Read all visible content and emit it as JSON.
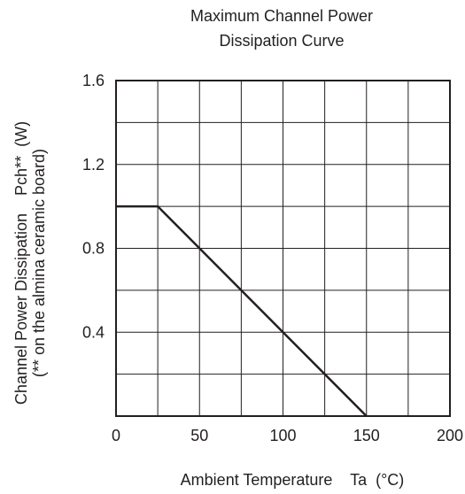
{
  "chart_data": {
    "type": "line",
    "title_lines": [
      "Maximum Channel Power",
      "Dissipation Curve"
    ],
    "xlabel": "Ambient Temperature    Ta  (°C)",
    "ylabel_lines": [
      "Channel Power Dissipation    Pch**  (W)",
      "(** on the almina ceramic board)"
    ],
    "xlim": [
      0,
      200
    ],
    "ylim": [
      0,
      1.6
    ],
    "x_ticks": [
      0,
      50,
      100,
      150,
      200
    ],
    "x_tick_labels": [
      "0",
      "50",
      "100",
      "150",
      "200"
    ],
    "y_ticks": [
      0.4,
      0.8,
      1.2,
      1.6
    ],
    "y_tick_labels": [
      "0.4",
      "0.8",
      "1.2",
      "1.6"
    ],
    "x_grid_step": 25,
    "y_grid_step": 0.2,
    "grid": true,
    "series": [
      {
        "x": [
          0,
          25,
          150
        ],
        "y": [
          1.0,
          1.0,
          0
        ]
      }
    ],
    "line_color": "#231f20",
    "grid_color": "#231f20"
  }
}
